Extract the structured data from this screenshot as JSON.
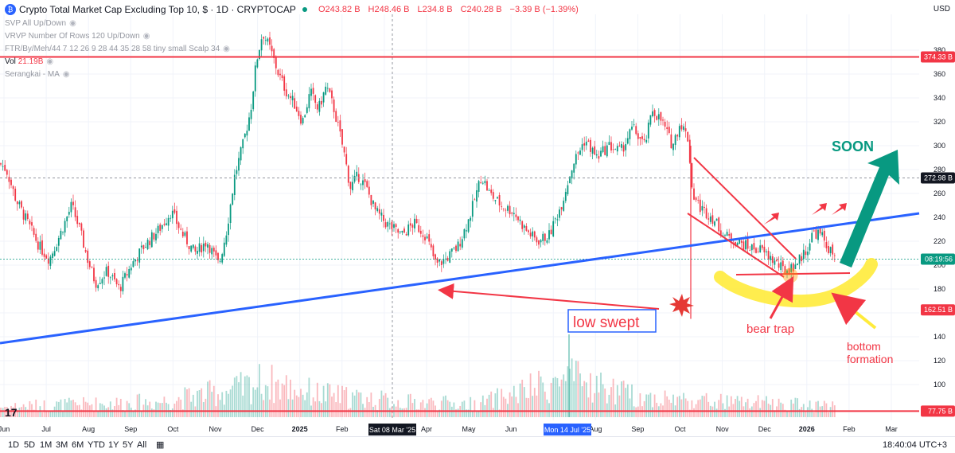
{
  "header": {
    "title": "Crypto Total Market Cap Excluding Top 10, $ · 1D · CRYPTOCAP",
    "open": "O243.82 B",
    "high": "H248.46 B",
    "low": "L234.8 B",
    "close": "C240.28 B",
    "change": "−3.39 B (−1.39%)",
    "currency": "USD"
  },
  "indicators": [
    {
      "label": "SVP All Up/Down"
    },
    {
      "label": "VRVP Number Of Rows 120 Up/Down"
    },
    {
      "label": "FTR/By/Meh/44 7 12 26 9 28 44 35 28 58 tiny small Scalp 34"
    },
    {
      "label": "Vol",
      "value": "21.19B"
    },
    {
      "label": "Serangkai - MA"
    }
  ],
  "bottom_bar": {
    "timeframes": [
      "1D",
      "5D",
      "1M",
      "3M",
      "6M",
      "YTD",
      "1Y",
      "5Y",
      "All"
    ],
    "clock": "18:40:04 UTC+3"
  },
  "annotations": {
    "soon": "SOON",
    "low_swept": "low swept",
    "bear_trap": "bear trap",
    "bottom_formation_1": "bottom",
    "bottom_formation_2": "formation"
  },
  "colors": {
    "up": "#089981",
    "down": "#f23645",
    "trendline": "#2962ff",
    "level": "#f23645",
    "soon_arrow": "#089981",
    "highlight": "#ffeb3b",
    "annotation_red": "#f23645"
  },
  "chart_data": {
    "type": "candlestick",
    "title": "Crypto Total Market Cap Excluding Top 10, $ · 1D · CRYPTOCAP",
    "ylabel": "USD",
    "ylim": [
      70,
      410
    ],
    "y_ticks": [
      100,
      120,
      140,
      160,
      180,
      200,
      220,
      240,
      260,
      280,
      300,
      320,
      340,
      360,
      380
    ],
    "x_ticks": [
      "Jun",
      "Jul",
      "Aug",
      "Sep",
      "Oct",
      "Nov",
      "Dec",
      "2025",
      "Feb",
      "Mar",
      "Apr",
      "May",
      "Jun",
      "Jul",
      "Aug",
      "Sep",
      "Oct",
      "Nov",
      "Dec",
      "2026",
      "Feb",
      "Mar"
    ],
    "x_highlight_labels": [
      "Sat 08 Mar '25",
      "Mon 14 Jul '25"
    ],
    "price_labels": [
      {
        "text": "374.33 B",
        "value": 374.33,
        "kind": "level"
      },
      {
        "text": "272.98 B",
        "value": 272.98,
        "kind": "crosshair"
      },
      {
        "text": "08:19:56",
        "value": 205,
        "kind": "countdown"
      },
      {
        "text": "162.51 B",
        "value": 162.51,
        "kind": "level"
      },
      {
        "text": "77.75 B",
        "value": 77.75,
        "kind": "level"
      }
    ],
    "horizontal_levels": [
      374.33,
      77.75
    ],
    "close_path": [
      [
        0,
        285
      ],
      [
        8,
        280
      ],
      [
        20,
        255
      ],
      [
        35,
        235
      ],
      [
        50,
        215
      ],
      [
        62,
        205
      ],
      [
        75,
        225
      ],
      [
        90,
        250
      ],
      [
        100,
        230
      ],
      [
        110,
        205
      ],
      [
        120,
        185
      ],
      [
        135,
        195
      ],
      [
        150,
        180
      ],
      [
        165,
        200
      ],
      [
        180,
        215
      ],
      [
        200,
        230
      ],
      [
        215,
        245
      ],
      [
        230,
        225
      ],
      [
        245,
        210
      ],
      [
        260,
        220
      ],
      [
        275,
        200
      ],
      [
        285,
        230
      ],
      [
        295,
        275
      ],
      [
        305,
        300
      ],
      [
        315,
        330
      ],
      [
        322,
        370
      ],
      [
        330,
        395
      ],
      [
        340,
        380
      ],
      [
        350,
        360
      ],
      [
        360,
        345
      ],
      [
        370,
        335
      ],
      [
        380,
        320
      ],
      [
        390,
        345
      ],
      [
        400,
        330
      ],
      [
        410,
        350
      ],
      [
        420,
        330
      ],
      [
        432,
        295
      ],
      [
        440,
        265
      ],
      [
        450,
        275
      ],
      [
        460,
        265
      ],
      [
        472,
        245
      ],
      [
        485,
        235
      ],
      [
        495,
        230
      ],
      [
        505,
        225
      ],
      [
        520,
        235
      ],
      [
        535,
        225
      ],
      [
        548,
        200
      ],
      [
        560,
        205
      ],
      [
        575,
        215
      ],
      [
        590,
        240
      ],
      [
        605,
        275
      ],
      [
        615,
        260
      ],
      [
        630,
        250
      ],
      [
        645,
        245
      ],
      [
        660,
        230
      ],
      [
        675,
        220
      ],
      [
        690,
        225
      ],
      [
        705,
        250
      ],
      [
        720,
        285
      ],
      [
        735,
        305
      ],
      [
        750,
        290
      ],
      [
        765,
        300
      ],
      [
        780,
        295
      ],
      [
        795,
        315
      ],
      [
        810,
        300
      ],
      [
        820,
        330
      ],
      [
        832,
        320
      ],
      [
        845,
        300
      ],
      [
        855,
        320
      ],
      [
        865,
        305
      ],
      [
        870,
        260
      ],
      [
        880,
        248
      ],
      [
        895,
        240
      ],
      [
        910,
        225
      ],
      [
        925,
        220
      ],
      [
        940,
        215
      ],
      [
        955,
        213
      ],
      [
        970,
        205
      ],
      [
        985,
        195
      ],
      [
        995,
        198
      ],
      [
        1005,
        205
      ],
      [
        1015,
        215
      ],
      [
        1022,
        228
      ],
      [
        1032,
        225
      ],
      [
        1040,
        215
      ],
      [
        1050,
        205
      ]
    ],
    "volume_path": [
      [
        0,
        8
      ],
      [
        100,
        10
      ],
      [
        200,
        12
      ],
      [
        300,
        22
      ],
      [
        330,
        28
      ],
      [
        400,
        18
      ],
      [
        500,
        12
      ],
      [
        600,
        10
      ],
      [
        715,
        30
      ],
      [
        800,
        16
      ],
      [
        900,
        12
      ],
      [
        1000,
        10
      ],
      [
        1050,
        9
      ]
    ]
  }
}
